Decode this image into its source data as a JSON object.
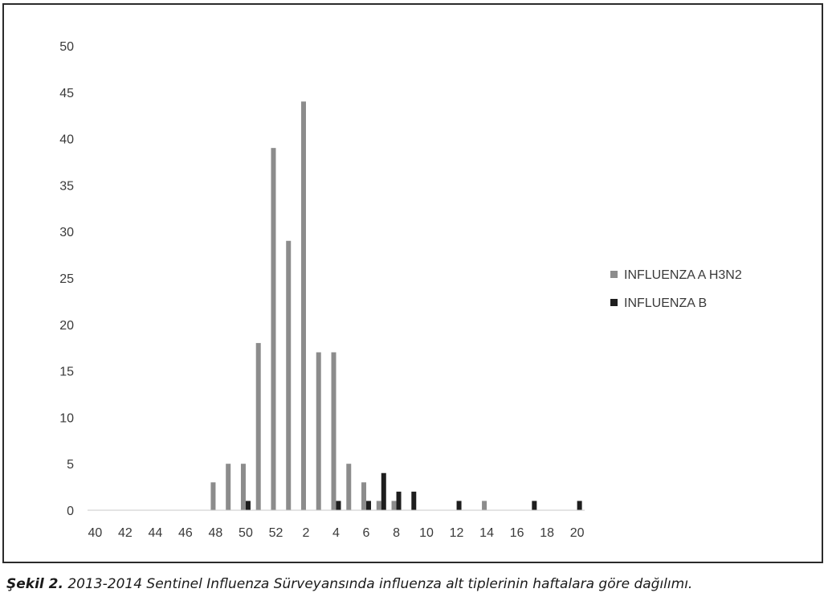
{
  "chart_data": {
    "type": "bar",
    "categories": [
      "40",
      "41",
      "42",
      "43",
      "44",
      "45",
      "46",
      "47",
      "48",
      "49",
      "50",
      "51",
      "52",
      "1",
      "2",
      "3",
      "4",
      "5",
      "6",
      "7",
      "8",
      "9",
      "10",
      "11",
      "12",
      "13",
      "14",
      "15",
      "16",
      "17",
      "18",
      "19",
      "20"
    ],
    "tick_labels": [
      "40",
      "42",
      "44",
      "46",
      "48",
      "50",
      "52",
      "2",
      "4",
      "6",
      "8",
      "10",
      "12",
      "14",
      "16",
      "18",
      "20"
    ],
    "series": [
      {
        "name": "INFLUENZA A H3N2",
        "color": "#8c8c8c",
        "values": [
          0,
          0,
          0,
          0,
          0,
          0,
          0,
          0,
          3,
          5,
          5,
          18,
          39,
          29,
          44,
          17,
          17,
          5,
          3,
          1,
          1,
          0,
          0,
          0,
          0,
          0,
          1,
          0,
          0,
          0,
          0,
          0,
          0
        ]
      },
      {
        "name": "INFLUENZA B",
        "color": "#1e1e1e",
        "values": [
          0,
          0,
          0,
          0,
          0,
          0,
          0,
          0,
          0,
          0,
          1,
          0,
          0,
          0,
          0,
          0,
          1,
          0,
          1,
          4,
          2,
          2,
          0,
          0,
          1,
          0,
          0,
          0,
          0,
          1,
          0,
          0,
          1
        ]
      }
    ],
    "ylim": [
      0,
      50
    ],
    "yticks": [
      0,
      5,
      10,
      15,
      20,
      25,
      30,
      35,
      40,
      45,
      50
    ],
    "grid": false,
    "legend": "right",
    "xlabel": "",
    "ylabel": ""
  },
  "caption": {
    "label": "Şekil 2.",
    "text": " 2013-2014 Sentinel Influenza Sürveyansında influenza alt tiplerinin haftalara göre dağılımı."
  }
}
